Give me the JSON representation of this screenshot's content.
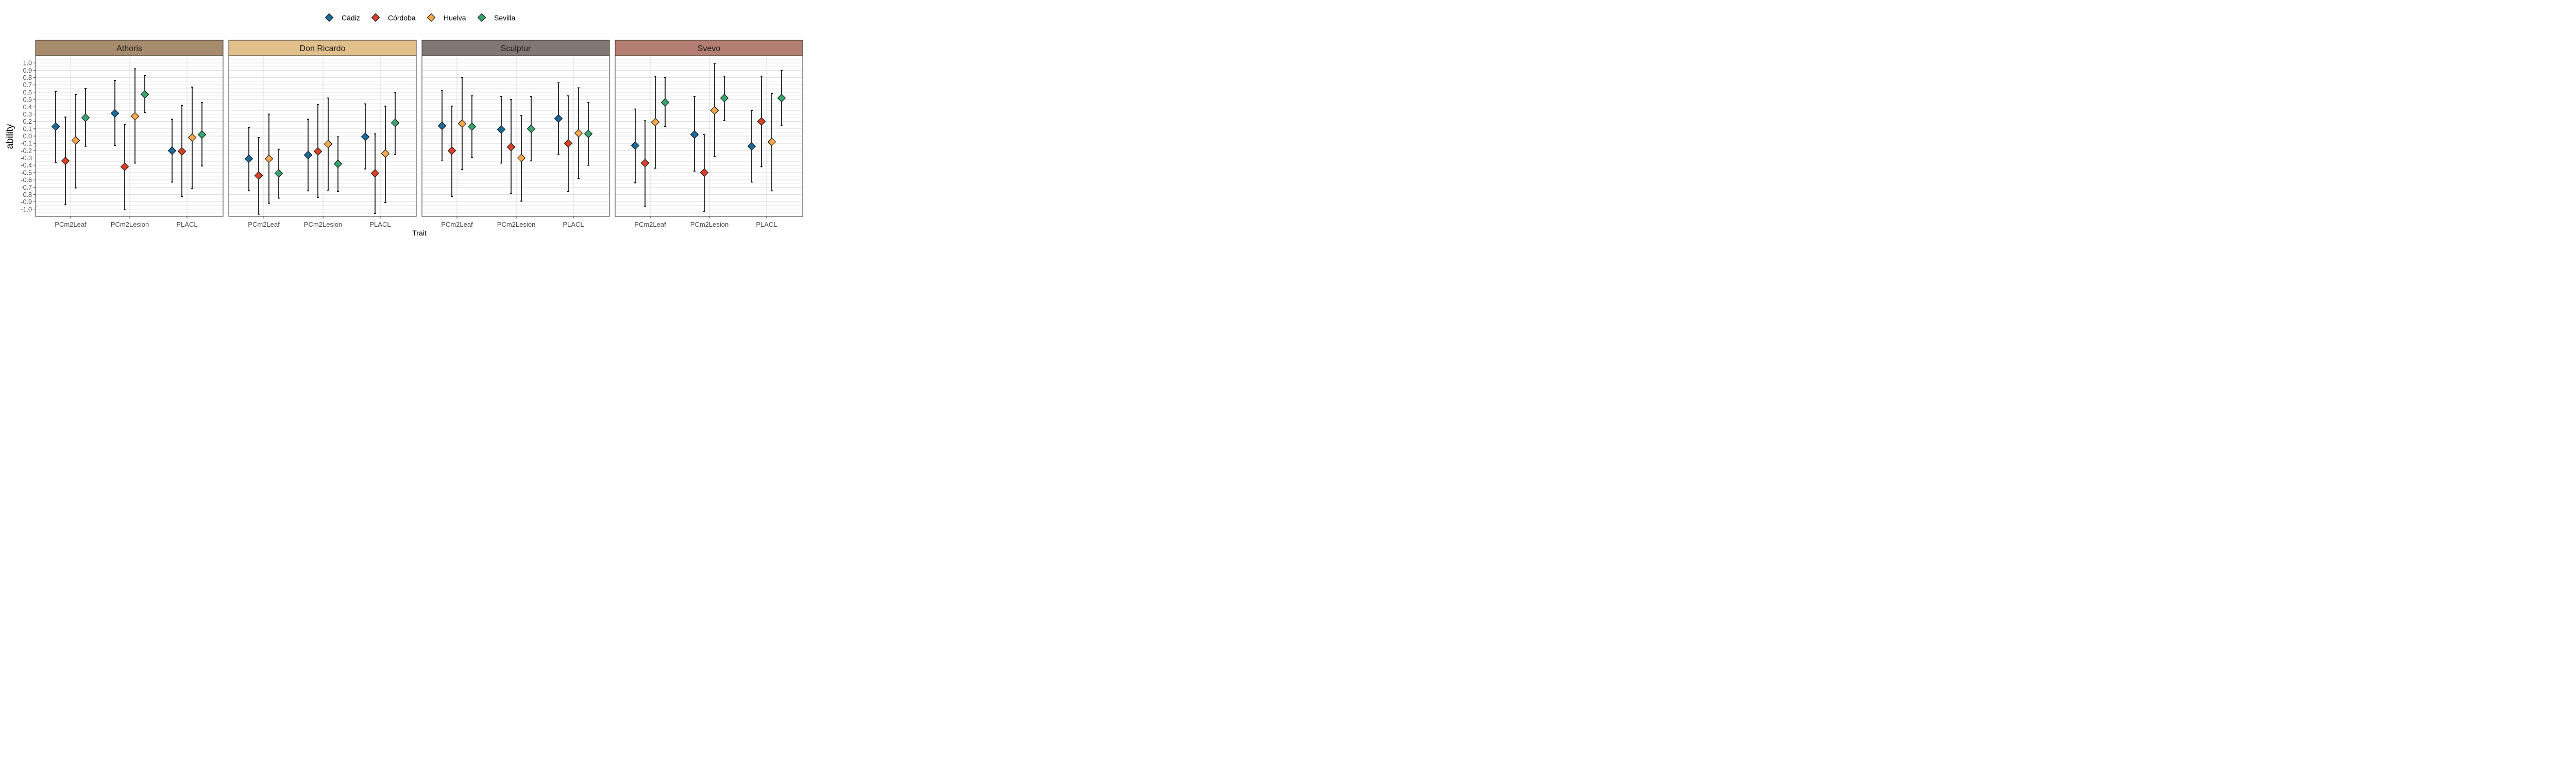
{
  "chart_data": {
    "type": "scatter",
    "xlabel": "Trait",
    "ylabel": "ability",
    "categories": [
      "PCm2Leaf",
      "PCm2Lesion",
      "PLACL"
    ],
    "ylim": [
      -1.1,
      1.1
    ],
    "yticks": [
      "1.0",
      "0.9",
      "0.8",
      "0.7",
      "0.6",
      "0.5",
      "0.4",
      "0.3",
      "0.2",
      "0.1",
      "0.0",
      "-0.1",
      "-0.2",
      "-0.3",
      "-0.4",
      "-0.5",
      "-0.6",
      "-0.7",
      "-0.8",
      "-0.9",
      "-1.0"
    ],
    "legend": {
      "placement": "top-center",
      "entries": [
        {
          "name": "Cádiz",
          "color": "#1a6b9a"
        },
        {
          "name": "Córdoba",
          "color": "#d7412a"
        },
        {
          "name": "Huelva",
          "color": "#f5a94a"
        },
        {
          "name": "Sevilla",
          "color": "#3aa470"
        }
      ]
    },
    "grid": true,
    "panels": [
      {
        "title": "Athoris",
        "strip_color": "#a68c6c",
        "points": [
          [
            [
              0.13,
              -0.36,
              0.61
            ],
            [
              -0.34,
              -0.94,
              0.26
            ],
            [
              -0.06,
              -0.71,
              0.57
            ],
            [
              0.25,
              -0.14,
              0.65
            ]
          ],
          [
            [
              0.31,
              -0.13,
              0.76
            ],
            [
              -0.42,
              -1.01,
              0.16
            ],
            [
              0.27,
              -0.37,
              0.92
            ],
            [
              0.57,
              0.32,
              0.83
            ]
          ],
          [
            [
              -0.2,
              -0.63,
              0.23
            ],
            [
              -0.21,
              -0.83,
              0.42
            ],
            [
              -0.02,
              -0.72,
              0.67
            ],
            [
              0.02,
              -0.41,
              0.46
            ]
          ]
        ]
      },
      {
        "title": "Don Ricardo",
        "strip_color": "#e2c08c",
        "points": [
          [
            [
              -0.31,
              -0.75,
              0.12
            ],
            [
              -0.54,
              -1.07,
              -0.02
            ],
            [
              -0.31,
              -0.92,
              0.3
            ],
            [
              -0.51,
              -0.85,
              -0.18
            ]
          ],
          [
            [
              -0.26,
              -0.75,
              0.23
            ],
            [
              -0.21,
              -0.84,
              0.43
            ],
            [
              -0.11,
              -0.74,
              0.52
            ],
            [
              -0.38,
              -0.76,
              -0.01
            ]
          ],
          [
            [
              -0.01,
              -0.45,
              0.44
            ],
            [
              -0.51,
              -1.06,
              0.03
            ],
            [
              -0.24,
              -0.91,
              0.41
            ],
            [
              0.18,
              -0.25,
              0.6
            ]
          ]
        ]
      },
      {
        "title": "Sculptur",
        "strip_color": "#827873",
        "points": [
          [
            [
              0.14,
              -0.33,
              0.62
            ],
            [
              -0.2,
              -0.83,
              0.41
            ],
            [
              0.17,
              -0.46,
              0.8
            ],
            [
              0.13,
              -0.29,
              0.55
            ]
          ],
          [
            [
              0.09,
              -0.37,
              0.54
            ],
            [
              -0.15,
              -0.79,
              0.5
            ],
            [
              -0.3,
              -0.89,
              0.28
            ],
            [
              0.1,
              -0.34,
              0.54
            ]
          ],
          [
            [
              0.24,
              -0.25,
              0.73
            ],
            [
              -0.1,
              -0.76,
              0.55
            ],
            [
              0.04,
              -0.58,
              0.66
            ],
            [
              0.03,
              -0.4,
              0.46
            ]
          ]
        ]
      },
      {
        "title": "Svevo",
        "strip_color": "#b47f72",
        "points": [
          [
            [
              -0.13,
              -0.64,
              0.37
            ],
            [
              -0.37,
              -0.96,
              0.21
            ],
            [
              0.19,
              -0.44,
              0.82
            ],
            [
              0.46,
              0.13,
              0.8
            ]
          ],
          [
            [
              0.02,
              -0.48,
              0.54
            ],
            [
              -0.5,
              -1.03,
              0.02
            ],
            [
              0.35,
              -0.28,
              0.99
            ],
            [
              0.52,
              0.21,
              0.82
            ]
          ],
          [
            [
              -0.14,
              -0.63,
              0.35
            ],
            [
              0.2,
              -0.42,
              0.82
            ],
            [
              -0.08,
              -0.75,
              0.58
            ],
            [
              0.52,
              0.14,
              0.9
            ]
          ]
        ]
      }
    ]
  }
}
